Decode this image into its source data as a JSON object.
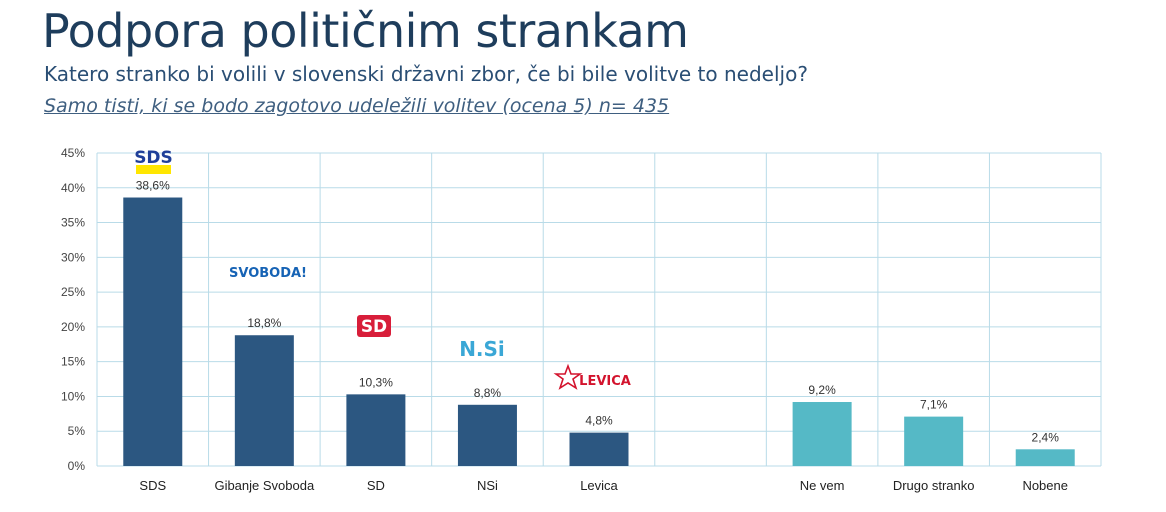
{
  "header": {
    "title": "Podpora političnim strankam",
    "subtitle": "Katero stranko bi volili v slovenski državni zbor, če bi bile volitve to nedeljo?",
    "note": "Samo tisti, ki se bodo zagotovo udeležili volitev (ocena 5) n= 435"
  },
  "logos": {
    "sds": "SDS",
    "svoboda": "SVOBODA!",
    "sd": "SD",
    "nsi": "N.Si",
    "levica": "LEVICA"
  },
  "colors": {
    "party_bar": "#2c5781",
    "other_bar": "#55b9c6",
    "grid": "#b9dbe8"
  },
  "chart_data": {
    "type": "bar",
    "title": "",
    "xlabel": "",
    "ylabel": "",
    "ylim": [
      0,
      45
    ],
    "yticks": [
      "0%",
      "5%",
      "10%",
      "15%",
      "20%",
      "25%",
      "30%",
      "35%",
      "40%",
      "45%"
    ],
    "categories": [
      "SDS",
      "Gibanje Svoboda",
      "SD",
      "NSi",
      "Levica",
      "",
      "Ne vem",
      "Drugo stranko",
      "Nobene"
    ],
    "values": [
      38.6,
      18.8,
      10.3,
      8.8,
      4.8,
      null,
      9.2,
      7.1,
      2.4
    ],
    "value_labels": [
      "38,6%",
      "18,8%",
      "10,3%",
      "8,8%",
      "4,8%",
      "",
      "9,2%",
      "7,1%",
      "2,4%"
    ],
    "grid": true,
    "legend": "none"
  }
}
